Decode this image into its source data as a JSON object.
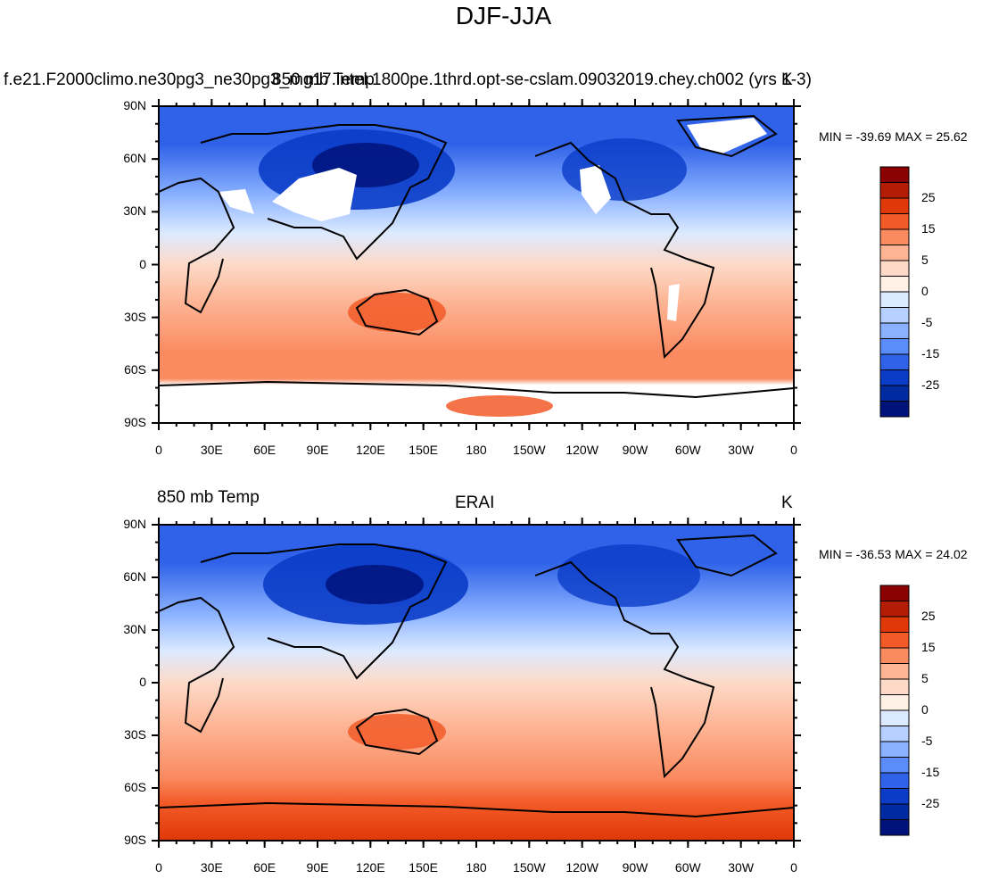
{
  "figure": {
    "title": "DJF-JJA"
  },
  "panels": [
    {
      "id": "top",
      "left_label": "f.e21.F2000climo.ne30pg3_ne30pg3_mg17.intel.1800pe.1thrd.opt-se-cslam.09032019.chey.ch002 (yrs 1-3)",
      "center_label": "850 mb Temp",
      "right_label": "K",
      "minmax": "MIN = -39.69 MAX =  25.62"
    },
    {
      "id": "bottom",
      "left_label": "850 mb Temp",
      "center_label": "ERAI",
      "right_label": "K",
      "minmax": "MIN = -36.53 MAX =  24.02"
    }
  ],
  "axes": {
    "lat_ticks": [
      "90N",
      "60N",
      "30N",
      "0",
      "30S",
      "60S",
      "90S"
    ],
    "lon_ticks": [
      "0",
      "30E",
      "60E",
      "90E",
      "120E",
      "150E",
      "180",
      "150W",
      "120W",
      "90W",
      "60W",
      "30W",
      "0"
    ]
  },
  "colorbar": {
    "labels": [
      "25",
      "15",
      "5",
      "0",
      "-5",
      "-15",
      "-25"
    ],
    "colors": [
      "#8b0000",
      "#b51c06",
      "#e03808",
      "#f25b28",
      "#fa8a60",
      "#fdb494",
      "#fddac8",
      "#fff1e6",
      "#dceaff",
      "#b6d0ff",
      "#8ab1ff",
      "#5a8cfa",
      "#2f62e8",
      "#0a3cc8",
      "#002aa0",
      "#00137a"
    ]
  },
  "chart_data": {
    "type": "heatmap",
    "description_fields": {
      "variable": "850 mb Temp",
      "units": "K",
      "projection": "cylindrical equidistant, longitude 0 to 360",
      "missing_value_color": "white (top panel, high terrain masked)"
    },
    "panels": [
      {
        "label": "f.e21.F2000climo.ne30pg3_ne30pg3_mg17.intel.1800pe.1thrd.opt-se-cslam.09032019.chey.ch002 (yrs 1-3)",
        "min": -39.69,
        "max": 25.62
      },
      {
        "label": "ERAI",
        "min": -36.53,
        "max": 24.02
      }
    ],
    "colorbar_levels": [
      -30,
      -25,
      -20,
      -15,
      -10,
      -5,
      -2.5,
      0,
      2.5,
      5,
      10,
      15,
      20,
      25,
      30
    ],
    "colorbar_tick_labels": [
      "25",
      "15",
      "5",
      "0",
      "-5",
      "-15",
      "-25"
    ]
  }
}
